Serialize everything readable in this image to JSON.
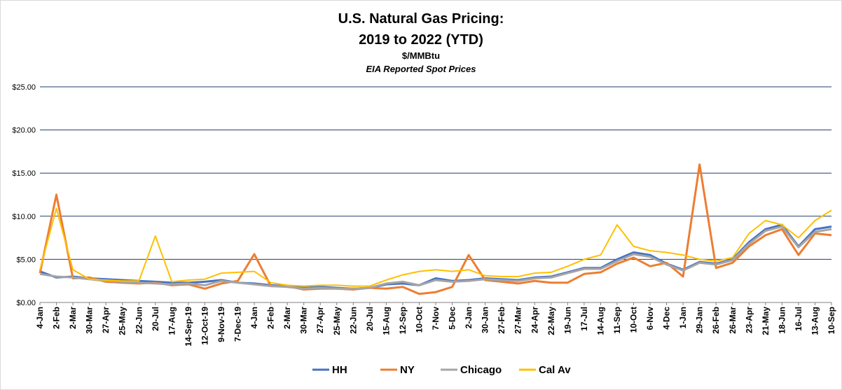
{
  "chart_data": {
    "type": "line",
    "title": "U.S. Natural Gas Pricing:",
    "title_line2": "2019 to 2022 (YTD)",
    "subtitle": "$/MMBtu",
    "subtitle2": "EIA Reported Spot Prices",
    "ylim": [
      0,
      25
    ],
    "yticks": [
      "$0.00",
      "$5.00",
      "$10.00",
      "$15.00",
      "$20.00",
      "$25.00"
    ],
    "ytick_values": [
      0,
      5,
      10,
      15,
      20,
      25
    ],
    "grid": true,
    "legend_position": "bottom",
    "x_ticks": [
      "4-Jan",
      "2-Feb",
      "2-Mar",
      "30-Mar",
      "27-Apr",
      "25-May",
      "22-Jun",
      "20-Jul",
      "17-Aug",
      "14-Sep-19",
      "12-Oct-19",
      "9-Nov-19",
      "7-Dec-19",
      "4-Jan",
      "2-Feb",
      "2-Mar",
      "30-Mar",
      "27-Apr",
      "25-May",
      "22-Jun",
      "20-Jul",
      "15-Aug",
      "12-Sep",
      "10-Oct",
      "7-Nov",
      "5-Dec",
      "2-Jan",
      "30-Jan",
      "27-Feb",
      "27-Mar",
      "24-Apr",
      "22-May",
      "19-Jun",
      "17-Jul",
      "14-Aug",
      "11-Sep",
      "10-Oct",
      "6-Nov",
      "4-Dec",
      "1-Jan",
      "29-Jan",
      "26-Feb",
      "26-Mar",
      "23-Apr",
      "21-May",
      "18-Jun",
      "16-Jul",
      "13-Aug",
      "10-Sep"
    ],
    "x_points": 49,
    "series": [
      {
        "name": "HH",
        "color": "#4472C4",
        "width": 3,
        "values": [
          3.6,
          2.9,
          3.0,
          2.8,
          2.7,
          2.6,
          2.5,
          2.4,
          2.3,
          2.3,
          2.4,
          2.6,
          2.3,
          2.2,
          2.0,
          1.9,
          1.7,
          1.8,
          1.7,
          1.6,
          1.7,
          2.1,
          2.2,
          2.0,
          2.8,
          2.5,
          2.6,
          2.8,
          2.7,
          2.6,
          2.9,
          3.0,
          3.5,
          4.0,
          4.0,
          5.0,
          5.8,
          5.5,
          4.5,
          3.8,
          4.7,
          4.5,
          5.0,
          7.0,
          8.5,
          9.0,
          6.5,
          8.5,
          8.8
        ]
      },
      {
        "name": "NY",
        "color": "#ED7D31",
        "width": 3,
        "values": [
          3.4,
          12.5,
          2.8,
          2.9,
          2.4,
          2.3,
          2.2,
          2.3,
          2.0,
          2.1,
          1.6,
          2.2,
          2.5,
          5.6,
          1.9,
          1.9,
          1.5,
          1.6,
          1.6,
          1.5,
          1.7,
          1.6,
          1.8,
          1.0,
          1.2,
          1.8,
          5.5,
          2.6,
          2.4,
          2.2,
          2.5,
          2.3,
          2.3,
          3.3,
          3.5,
          4.5,
          5.2,
          4.2,
          4.6,
          3.0,
          16.0,
          4.0,
          4.6,
          6.5,
          7.8,
          8.5,
          5.5,
          8.0,
          7.8
        ]
      },
      {
        "name": "Chicago",
        "color": "#A5A5A5",
        "width": 3,
        "values": [
          3.3,
          3.0,
          2.9,
          2.7,
          2.5,
          2.4,
          2.3,
          2.2,
          2.1,
          2.2,
          2.0,
          2.5,
          2.3,
          2.1,
          1.9,
          1.8,
          1.6,
          1.7,
          1.6,
          1.6,
          1.7,
          2.2,
          2.4,
          2.0,
          2.6,
          2.4,
          2.5,
          2.7,
          2.6,
          2.5,
          2.8,
          2.9,
          3.4,
          3.9,
          3.9,
          4.8,
          5.6,
          5.3,
          4.4,
          3.7,
          4.6,
          4.4,
          4.9,
          6.8,
          8.3,
          8.8,
          6.4,
          8.2,
          8.5
        ]
      },
      {
        "name": "Cal Av",
        "color": "#FFC000",
        "width": 2,
        "values": [
          3.8,
          10.9,
          3.8,
          2.7,
          2.6,
          2.5,
          2.5,
          7.7,
          2.4,
          2.6,
          2.7,
          3.4,
          3.5,
          3.6,
          2.3,
          2.0,
          1.9,
          2.0,
          2.0,
          1.9,
          1.9,
          2.6,
          3.2,
          3.6,
          3.8,
          3.6,
          3.8,
          3.1,
          3.0,
          3.0,
          3.4,
          3.5,
          4.2,
          5.0,
          5.5,
          9.0,
          6.5,
          6.0,
          5.8,
          5.5,
          5.0,
          4.8,
          5.2,
          8.0,
          9.5,
          9.0,
          7.5,
          9.5,
          10.7
        ]
      }
    ]
  }
}
